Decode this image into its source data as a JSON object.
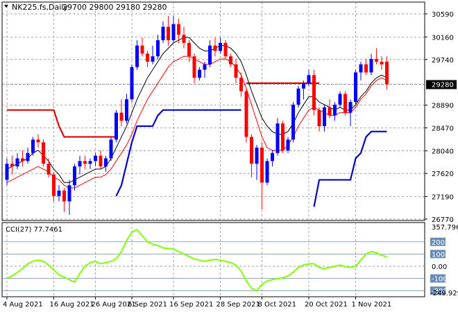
{
  "chart_data": [
    {
      "type": "candlestick",
      "title": "NK225.fs,Daily",
      "ohlc_text": "29700 29800 29180 29280",
      "ohlc": {
        "open": 29700,
        "high": 29800,
        "low": 29180,
        "close": 29280
      },
      "current_price": 29280,
      "ylim": [
        26770,
        30590
      ],
      "y_ticks": [
        30590,
        30160,
        29740,
        29280,
        28890,
        28470,
        28040,
        27620,
        27190,
        26770
      ],
      "x_tick_labels": [
        "4 Aug 2021",
        "16 Aug 2021",
        "26 Aug 2021",
        "6 Sep 2021",
        "16 Sep 2021",
        "28 Sep 2021",
        "8 Oct 2021",
        "20 Oct 2021",
        "1 Nov 2021"
      ],
      "colors": {
        "up": "#0000ff",
        "down": "#ff0000",
        "fast_ma": "#000000",
        "slow_ma": "#ff0000",
        "channel_high": "#dd0000",
        "channel_low": "#0000cc"
      },
      "candles": [
        [
          27500,
          27900,
          27400,
          27800
        ],
        [
          27800,
          27950,
          27600,
          27750
        ],
        [
          27750,
          28000,
          27700,
          27900
        ],
        [
          27900,
          28050,
          27750,
          27850
        ],
        [
          27850,
          28100,
          27800,
          28000
        ],
        [
          28000,
          28300,
          27950,
          28250
        ],
        [
          28250,
          28350,
          28100,
          28200
        ],
        [
          28200,
          28250,
          27750,
          27800
        ],
        [
          27800,
          27900,
          27550,
          27600
        ],
        [
          27600,
          27650,
          27100,
          27200
        ],
        [
          27200,
          27400,
          27100,
          27300
        ],
        [
          27300,
          27350,
          26900,
          27100
        ],
        [
          27100,
          27500,
          26850,
          27400
        ],
        [
          27400,
          27800,
          27300,
          27750
        ],
        [
          27750,
          27950,
          27600,
          27850
        ],
        [
          27850,
          27950,
          27700,
          27800
        ],
        [
          27800,
          27900,
          27700,
          27850
        ],
        [
          27850,
          28000,
          27750,
          27950
        ],
        [
          27950,
          28050,
          27700,
          27750
        ],
        [
          27750,
          27950,
          27650,
          27900
        ],
        [
          27900,
          28300,
          27850,
          28250
        ],
        [
          28250,
          28800,
          28200,
          28750
        ],
        [
          28750,
          29000,
          28500,
          28600
        ],
        [
          28600,
          29100,
          28550,
          29000
        ],
        [
          29000,
          29650,
          28950,
          29600
        ],
        [
          29600,
          30100,
          29550,
          30000
        ],
        [
          30000,
          30150,
          29800,
          29850
        ],
        [
          29850,
          29900,
          29600,
          29700
        ],
        [
          29700,
          30000,
          29650,
          29800
        ],
        [
          29800,
          30200,
          29750,
          30100
        ],
        [
          30100,
          30450,
          30050,
          30350
        ],
        [
          30350,
          30550,
          30000,
          30100
        ],
        [
          30100,
          30550,
          30050,
          30400
        ],
        [
          30400,
          30500,
          30050,
          30200
        ],
        [
          30200,
          30350,
          29950,
          30050
        ],
        [
          30050,
          30100,
          29700,
          29800
        ],
        [
          29800,
          29850,
          29300,
          29400
        ],
        [
          29400,
          29600,
          29350,
          29550
        ],
        [
          29550,
          29700,
          29400,
          29650
        ],
        [
          29650,
          30100,
          29600,
          30000
        ],
        [
          30000,
          30150,
          29800,
          29900
        ],
        [
          29900,
          30150,
          29850,
          30050
        ],
        [
          30050,
          30100,
          29750,
          29800
        ],
        [
          29800,
          29850,
          29600,
          29650
        ],
        [
          29650,
          29750,
          29300,
          29400
        ],
        [
          29400,
          29500,
          29050,
          29150
        ],
        [
          29150,
          29200,
          28200,
          28300
        ],
        [
          28300,
          28350,
          27550,
          27800
        ],
        [
          27800,
          28150,
          27500,
          28100
        ],
        [
          28100,
          28200,
          26950,
          27450
        ],
        [
          27450,
          27900,
          27400,
          27850
        ],
        [
          27850,
          28050,
          27750,
          28000
        ],
        [
          28000,
          28650,
          27950,
          28550
        ],
        [
          28550,
          28600,
          28000,
          28050
        ],
        [
          28050,
          28300,
          28000,
          28250
        ],
        [
          28250,
          28950,
          28200,
          28900
        ],
        [
          28900,
          29250,
          28850,
          29200
        ],
        [
          29200,
          29350,
          29000,
          29300
        ],
        [
          29300,
          29550,
          29250,
          29450
        ],
        [
          29450,
          29550,
          28700,
          28800
        ],
        [
          28800,
          28850,
          28400,
          28500
        ],
        [
          28500,
          28900,
          28400,
          28850
        ],
        [
          28850,
          29000,
          28650,
          28700
        ],
        [
          28700,
          28950,
          28600,
          28900
        ],
        [
          28900,
          29150,
          28850,
          29100
        ],
        [
          29100,
          29150,
          28700,
          28750
        ],
        [
          28750,
          29000,
          28500,
          28950
        ],
        [
          28950,
          29550,
          28900,
          29500
        ],
        [
          29500,
          29700,
          29350,
          29650
        ],
        [
          29650,
          29750,
          29450,
          29500
        ],
        [
          29500,
          29850,
          29450,
          29750
        ],
        [
          29750,
          29950,
          29650,
          29700
        ],
        [
          29700,
          29800,
          29550,
          29650
        ],
        [
          29700,
          29800,
          29180,
          29280
        ]
      ],
      "fast_ma": [
        27700,
        27750,
        27800,
        27850,
        27900,
        28000,
        28050,
        27950,
        27850,
        27700,
        27600,
        27450,
        27450,
        27500,
        27550,
        27600,
        27650,
        27700,
        27700,
        27750,
        27900,
        28100,
        28300,
        28500,
        28750,
        29000,
        29200,
        29400,
        29550,
        29700,
        29850,
        29950,
        30050,
        30100,
        30150,
        30150,
        30050,
        29950,
        29900,
        29900,
        29950,
        30000,
        30000,
        29950,
        29850,
        29700,
        29450,
        29150,
        28900,
        28650,
        28500,
        28400,
        28350,
        28350,
        28400,
        28550,
        28750,
        28900,
        29050,
        29050,
        28950,
        28900,
        28850,
        28800,
        28850,
        28800,
        28800,
        28900,
        29050,
        29150,
        29300,
        29400,
        29450,
        29400
      ],
      "slow_ma": [
        27450,
        27500,
        27550,
        27600,
        27650,
        27700,
        27750,
        27700,
        27650,
        27550,
        27500,
        27400,
        27350,
        27350,
        27400,
        27450,
        27500,
        27550,
        27550,
        27600,
        27700,
        27850,
        28000,
        28150,
        28350,
        28600,
        28800,
        29000,
        29150,
        29300,
        29450,
        29600,
        29700,
        29750,
        29800,
        29800,
        29750,
        29700,
        29650,
        29650,
        29700,
        29750,
        29750,
        29700,
        29600,
        29450,
        29200,
        28900,
        28600,
        28300,
        28100,
        28050,
        28050,
        28050,
        28150,
        28300,
        28500,
        28650,
        28800,
        28850,
        28800,
        28750,
        28700,
        28700,
        28750,
        28750,
        28750,
        28850,
        29000,
        29100,
        29250,
        29350,
        29400,
        29350
      ],
      "channel_high": [
        28800,
        28800,
        28800,
        28800,
        28800,
        28800,
        28800,
        28800,
        28800,
        28800,
        28500,
        28300,
        28300,
        28300,
        28300,
        28300,
        28300,
        28300,
        28300,
        28300,
        28300,
        28300,
        null,
        null,
        null,
        null,
        null,
        null,
        null,
        null,
        null,
        null,
        null,
        null,
        null,
        null,
        null,
        null,
        null,
        null,
        null,
        null,
        null,
        null,
        null,
        null,
        29300,
        29300,
        29300,
        29300,
        29300,
        29300,
        29300,
        29300,
        29300,
        29300,
        29300,
        29300,
        29300,
        29300,
        29300,
        null,
        null,
        null,
        null,
        null,
        null,
        null,
        null,
        null,
        null,
        null,
        null,
        null
      ],
      "channel_low": [
        null,
        null,
        null,
        null,
        null,
        null,
        null,
        null,
        null,
        null,
        null,
        null,
        null,
        null,
        null,
        null,
        null,
        null,
        null,
        null,
        null,
        27200,
        27400,
        27800,
        28200,
        28500,
        28500,
        28500,
        28500,
        28700,
        28800,
        28800,
        28800,
        28800,
        28800,
        28800,
        28800,
        28800,
        28800,
        28800,
        28800,
        28800,
        28800,
        28800,
        28800,
        28800,
        null,
        null,
        null,
        null,
        null,
        null,
        null,
        null,
        null,
        null,
        null,
        null,
        null,
        27000,
        27500,
        27500,
        27500,
        27500,
        27500,
        27500,
        27500,
        27900,
        28000,
        28300,
        28400,
        28400,
        28400,
        28400
      ],
      "channel_low_start": 21
    },
    {
      "type": "line",
      "title": "CCI(27) 77.7461",
      "top_label": "357.796",
      "bottom_label": "-249.929",
      "ylim": [
        -249.929,
        357.796
      ],
      "levels": [
        200,
        100,
        0,
        -100,
        -200
      ],
      "level_labels": [
        "200",
        "100",
        "0.00",
        "-100",
        "-200"
      ],
      "line_color": "#80ff00",
      "values": [
        -100,
        -80,
        -50,
        -20,
        20,
        40,
        50,
        40,
        10,
        -30,
        -70,
        -90,
        -110,
        -130,
        -60,
        0,
        30,
        40,
        20,
        30,
        40,
        60,
        120,
        210,
        280,
        300,
        250,
        200,
        180,
        170,
        150,
        145,
        140,
        120,
        100,
        80,
        60,
        50,
        40,
        50,
        55,
        50,
        40,
        30,
        10,
        -40,
        -120,
        -180,
        -200,
        -150,
        -120,
        -110,
        -100,
        -95,
        -80,
        -50,
        -10,
        10,
        20,
        20,
        -10,
        -20,
        -10,
        0,
        10,
        -5,
        -10,
        0,
        50,
        100,
        120,
        110,
        90,
        77
      ]
    }
  ]
}
